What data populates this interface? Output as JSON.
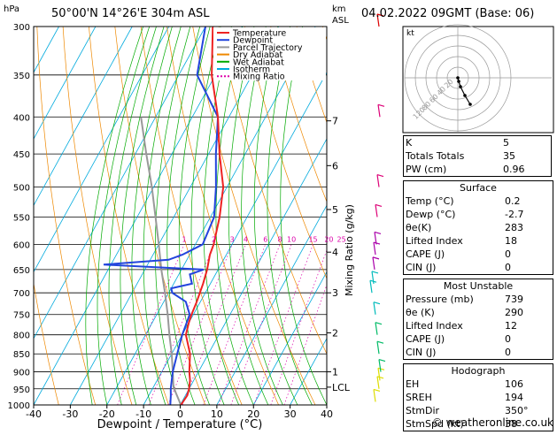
{
  "header": {
    "location": "50°00'N  14°26'E  304m  ASL",
    "datetime": "04.02.2022  09GMT  (Base: 06)",
    "hpa_label": "hPa",
    "km_label": "km",
    "asl_label": "ASL",
    "mixing_ratio_label": "Mixing Ratio (g/kg)",
    "copyright": "© weatheronline.co.uk"
  },
  "chart_data": {
    "type": "skew-t",
    "xlabel": "Dewpoint / Temperature (°C)",
    "x_ticks": [
      -40,
      -30,
      -20,
      -10,
      0,
      10,
      20,
      30,
      40
    ],
    "pressure_levels": [
      300,
      350,
      400,
      450,
      500,
      550,
      600,
      650,
      700,
      750,
      800,
      850,
      900,
      950,
      1000
    ],
    "km_ticks": [
      {
        "label": "7",
        "p": 405
      },
      {
        "label": "6",
        "p": 467
      },
      {
        "label": "5",
        "p": 537
      },
      {
        "label": "4",
        "p": 615
      },
      {
        "label": "3",
        "p": 700
      },
      {
        "label": "2",
        "p": 795
      },
      {
        "label": "1",
        "p": 900
      },
      {
        "label": "LCL",
        "p": 945
      }
    ],
    "mixing_ratio_labels": [
      "1",
      "2",
      "3",
      "4",
      "6",
      "8",
      "10",
      "15",
      "20",
      "25"
    ],
    "mixing_ratio_values": [
      1,
      2,
      3,
      4,
      6,
      8,
      10,
      15,
      20,
      25
    ],
    "legend": [
      {
        "name": "Temperature",
        "color": "#ee2222"
      },
      {
        "name": "Dewpoint",
        "color": "#2244dd"
      },
      {
        "name": "Parcel Trajectory",
        "color": "#999999"
      },
      {
        "name": "Dry Adiabat",
        "color": "#ee8800"
      },
      {
        "name": "Wet Adiabat",
        "color": "#00aa00"
      },
      {
        "name": "Isotherm",
        "color": "#00aadd"
      },
      {
        "name": "Mixing Ratio",
        "color": "#dd00aa"
      }
    ],
    "temperature": [
      [
        1000,
        0.2
      ],
      [
        970,
        0.5
      ],
      [
        950,
        0
      ],
      [
        925,
        -1
      ],
      [
        900,
        -2.5
      ],
      [
        850,
        -5
      ],
      [
        800,
        -9
      ],
      [
        770,
        -10
      ],
      [
        750,
        -10.5
      ],
      [
        720,
        -11
      ],
      [
        700,
        -11.5
      ],
      [
        680,
        -12
      ],
      [
        650,
        -13
      ],
      [
        620,
        -14.5
      ],
      [
        600,
        -15
      ],
      [
        550,
        -17.5
      ],
      [
        500,
        -21
      ],
      [
        450,
        -27
      ],
      [
        400,
        -33
      ],
      [
        350,
        -41
      ],
      [
        300,
        -48
      ]
    ],
    "dewpoint": [
      [
        1000,
        -2.7
      ],
      [
        970,
        -4
      ],
      [
        950,
        -5
      ],
      [
        925,
        -6
      ],
      [
        900,
        -7
      ],
      [
        850,
        -8.5
      ],
      [
        800,
        -10
      ],
      [
        750,
        -11
      ],
      [
        720,
        -14
      ],
      [
        700,
        -19
      ],
      [
        690,
        -20
      ],
      [
        680,
        -15
      ],
      [
        660,
        -17
      ],
      [
        650,
        -14
      ],
      [
        645,
        -28
      ],
      [
        640,
        -42
      ],
      [
        630,
        -25
      ],
      [
        620,
        -22
      ],
      [
        610,
        -20
      ],
      [
        600,
        -18
      ],
      [
        550,
        -19
      ],
      [
        500,
        -23
      ],
      [
        450,
        -28
      ],
      [
        400,
        -33
      ],
      [
        370,
        -40
      ],
      [
        350,
        -45
      ],
      [
        300,
        -50
      ]
    ],
    "parcel": [
      [
        1000,
        0.2
      ],
      [
        945,
        -4.5
      ],
      [
        900,
        -7
      ],
      [
        850,
        -10
      ],
      [
        800,
        -13.5
      ],
      [
        750,
        -17
      ],
      [
        700,
        -21
      ],
      [
        650,
        -25.5
      ],
      [
        600,
        -30
      ],
      [
        550,
        -35
      ],
      [
        500,
        -40.5
      ],
      [
        450,
        -47
      ],
      [
        400,
        -54
      ]
    ],
    "wind_colors": [
      "#dddd00",
      "#00bb66",
      "#00bbbb",
      "#aa00aa",
      "#dd0077",
      "#dd0000"
    ],
    "hodograph": {
      "label": "kt",
      "ring_labels": [
        "20",
        "40",
        "60",
        "80",
        "120"
      ],
      "trace": [
        [
          0,
          0
        ],
        [
          1,
          4
        ],
        [
          3,
          10
        ],
        [
          8,
          20
        ],
        [
          14,
          30
        ]
      ]
    }
  },
  "indices": [
    {
      "label": "K",
      "value": "5"
    },
    {
      "label": "Totals Totals",
      "value": "35"
    },
    {
      "label": "PW (cm)",
      "value": "0.96"
    }
  ],
  "surface": {
    "title": "Surface",
    "rows": [
      {
        "label": "Temp (°C)",
        "value": "0.2"
      },
      {
        "label": "Dewp (°C)",
        "value": "-2.7"
      },
      {
        "label": "θe(K)",
        "value": "283"
      },
      {
        "label": "Lifted Index",
        "value": "18"
      },
      {
        "label": "CAPE (J)",
        "value": "0"
      },
      {
        "label": "CIN (J)",
        "value": "0"
      }
    ]
  },
  "most_unstable": {
    "title": "Most Unstable",
    "rows": [
      {
        "label": "Pressure (mb)",
        "value": "739"
      },
      {
        "label": "θe (K)",
        "value": "290"
      },
      {
        "label": "Lifted Index",
        "value": "12"
      },
      {
        "label": "CAPE (J)",
        "value": "0"
      },
      {
        "label": "CIN (J)",
        "value": "0"
      }
    ]
  },
  "hodograph_box": {
    "title": "Hodograph",
    "rows": [
      {
        "label": "EH",
        "value": "106"
      },
      {
        "label": "SREH",
        "value": "194"
      },
      {
        "label": "StmDir",
        "value": "350°"
      },
      {
        "label": "StmSpd (kt)",
        "value": "38"
      }
    ]
  }
}
